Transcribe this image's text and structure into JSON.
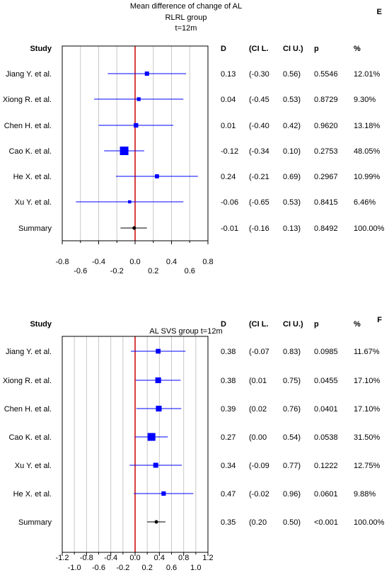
{
  "panels": [
    {
      "letter": "E",
      "title": [
        "Mean difference of change of AL",
        "RLRL group",
        "t=12m"
      ],
      "headers": {
        "study": "Study",
        "d": "D",
        "cil": "(CI L.",
        "ciu": "CI U.)",
        "p": "p",
        "w": "%"
      },
      "rows": [
        {
          "study": "Jiang Y. et al.",
          "d": "0.13",
          "cil": "(-0.30",
          "ciu": "0.56)",
          "p": "0.5546",
          "w": "12.01%"
        },
        {
          "study": "Xiong R. et al.",
          "d": "0.04",
          "cil": "(-0.45",
          "ciu": "0.53)",
          "p": "0.8729",
          "w": "9.30%"
        },
        {
          "study": "Chen H. et al.",
          "d": "0.01",
          "cil": "(-0.40",
          "ciu": "0.42)",
          "p": "0.9620",
          "w": "13.18%"
        },
        {
          "study": "Cao K. et al.",
          "d": "-0.12",
          "cil": "(-0.34",
          "ciu": "0.10)",
          "p": "0.2753",
          "w": "48.05%"
        },
        {
          "study": "He X. et al.",
          "d": "0.24",
          "cil": "(-0.21",
          "ciu": "0.69)",
          "p": "0.2967",
          "w": "10.99%"
        },
        {
          "study": "Xu Y. et al.",
          "d": "-0.06",
          "cil": "(-0.65",
          "ciu": "0.53)",
          "p": "0.8415",
          "w": "6.46%"
        },
        {
          "study": "Summary",
          "d": "-0.01",
          "cil": "(-0.16",
          "ciu": "0.13)",
          "p": "0.8492",
          "w": "100.00%"
        }
      ],
      "xticks_top": [
        "-0.8",
        "-0.4",
        "0.0",
        "0.4",
        "0.8"
      ],
      "xticks_bottom": [
        "-0.6",
        "-0.2",
        "0.2",
        "0.6"
      ]
    },
    {
      "letter": "F",
      "title": [
        "AL SVS group t=12m"
      ],
      "headers": {
        "study": "Study",
        "d": "D",
        "cil": "(CI L.",
        "ciu": "CI U.)",
        "p": "p",
        "w": "%"
      },
      "rows": [
        {
          "study": "Jiang Y. et al.",
          "d": "0.38",
          "cil": "(-0.07",
          "ciu": "0.83)",
          "p": "0.0985",
          "w": "11.67%"
        },
        {
          "study": "Xiong R. et al.",
          "d": "0.38",
          "cil": "(0.01",
          "ciu": "0.75)",
          "p": "0.0455",
          "w": "17.10%"
        },
        {
          "study": "Chen H. et al.",
          "d": "0.39",
          "cil": "(0.02",
          "ciu": "0.76)",
          "p": "0.0401",
          "w": "17.10%"
        },
        {
          "study": "Cao K. et al.",
          "d": "0.27",
          "cil": "(0.00",
          "ciu": "0.54)",
          "p": "0.0538",
          "w": "31.50%"
        },
        {
          "study": "Xu Y. et al.",
          "d": "0.34",
          "cil": "(-0.09",
          "ciu": "0.77)",
          "p": "0.1222",
          "w": "12.75%"
        },
        {
          "study": "He X. et al.",
          "d": "0.47",
          "cil": "(-0.02",
          "ciu": "0.96)",
          "p": "0.0601",
          "w": "9.88%"
        },
        {
          "study": "Summary",
          "d": "0.35",
          "cil": "(0.20",
          "ciu": "0.50)",
          "p": "<0.001",
          "w": "100.00%"
        }
      ],
      "xticks_top": [
        "-1.2",
        "-0.8",
        "-0.4",
        "0.0",
        "0.4",
        "0.8",
        "1.2"
      ],
      "xticks_bottom": [
        "-1.0",
        "-0.6",
        "-0.2",
        "0.2",
        "0.6",
        "1.0"
      ]
    }
  ],
  "chart_data": [
    {
      "type": "forest",
      "xlim": [
        -0.8,
        0.8
      ],
      "studies": [
        "Jiang Y. et al.",
        "Xiong R. et al.",
        "Chen H. et al.",
        "Cao K. et al.",
        "He X. et al.",
        "Xu Y. et al.",
        "Summary"
      ],
      "d": [
        0.13,
        0.04,
        0.01,
        -0.12,
        0.24,
        -0.06,
        -0.01
      ],
      "ci_low": [
        -0.3,
        -0.45,
        -0.4,
        -0.34,
        -0.21,
        -0.65,
        -0.16
      ],
      "ci_high": [
        0.56,
        0.53,
        0.42,
        0.1,
        0.69,
        0.53,
        0.13
      ],
      "weight": [
        12.01,
        9.3,
        13.18,
        48.05,
        10.99,
        6.46,
        100.0
      ]
    },
    {
      "type": "forest",
      "xlim": [
        -1.2,
        1.2
      ],
      "studies": [
        "Jiang Y. et al.",
        "Xiong R. et al.",
        "Chen H. et al.",
        "Cao K. et al.",
        "Xu Y. et al.",
        "He X. et al.",
        "Summary"
      ],
      "d": [
        0.38,
        0.38,
        0.39,
        0.27,
        0.34,
        0.47,
        0.35
      ],
      "ci_low": [
        -0.07,
        0.01,
        0.02,
        0.0,
        -0.09,
        -0.02,
        0.2
      ],
      "ci_high": [
        0.83,
        0.75,
        0.76,
        0.54,
        0.77,
        0.96,
        0.5
      ],
      "weight": [
        11.67,
        17.1,
        17.1,
        31.5,
        12.75,
        9.88,
        100.0
      ]
    }
  ],
  "colors": {
    "ci": "#0000ff",
    "summary": "#000000",
    "zero_line": "#cc0000",
    "grid": "#c8c8c8"
  }
}
